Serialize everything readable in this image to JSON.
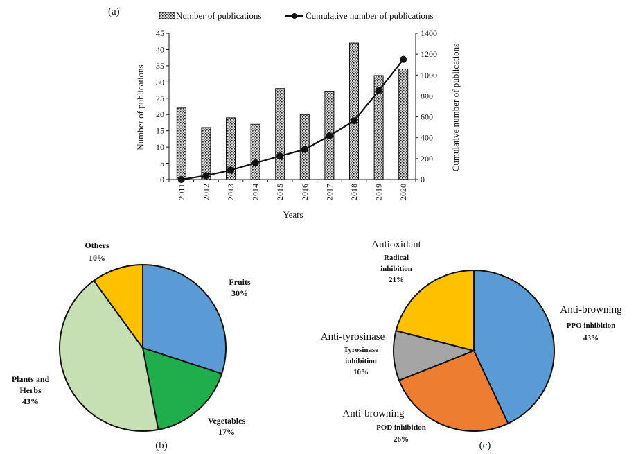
{
  "chart_data": [
    {
      "panel": "(a)",
      "type": "bar+line",
      "xlabel": "Years",
      "ylabel": "Number of publications",
      "y2label": "Cumulative number of publications",
      "ylim": [
        0,
        45
      ],
      "y2lim": [
        0,
        1400
      ],
      "yticks": [
        "0",
        "5",
        "10",
        "15",
        "20",
        "25",
        "30",
        "35",
        "40",
        "45"
      ],
      "y2ticks": [
        "0",
        "200",
        "400",
        "600",
        "800",
        "1000",
        "1200",
        "1400"
      ],
      "categories": [
        "2011",
        "2012",
        "2013",
        "2014",
        "2015",
        "2016",
        "2017",
        "2018",
        "2019",
        "2020"
      ],
      "series": [
        {
          "name": "Number of publications",
          "kind": "bar",
          "values": [
            22,
            16,
            19,
            17,
            28,
            20,
            27,
            42,
            32,
            34
          ]
        },
        {
          "name": "Cumulative number of publications",
          "kind": "line",
          "axis": "right",
          "values": [
            0,
            38,
            90,
            158,
            224,
            288,
            418,
            562,
            850,
            1150
          ]
        }
      ],
      "legend": "top"
    },
    {
      "panel": "(b)",
      "type": "pie",
      "slices": [
        {
          "label": "Fruits",
          "pct": "30%",
          "value": 30,
          "color": "#5b9bd5"
        },
        {
          "label": "Vegetables",
          "pct": "17%",
          "value": 17,
          "color": "#1fae4b"
        },
        {
          "label": "Plants and",
          "label2": "Herbs",
          "pct": "43%",
          "value": 43,
          "color": "#c6e0b4"
        },
        {
          "label": "Others",
          "pct": "10%",
          "value": 10,
          "color": "#ffc000"
        }
      ]
    },
    {
      "panel": "(c)",
      "type": "pie",
      "slices": [
        {
          "category": "Anti-browning",
          "label": "PPO inhibition",
          "pct": "43%",
          "value": 43,
          "color": "#5b9bd5"
        },
        {
          "category": "Anti-browning",
          "label": "POD inhibition",
          "pct": "26%",
          "value": 26,
          "color": "#ed7d31"
        },
        {
          "category": "Anti-tyrosinase",
          "label": "Tyrosinase",
          "label2": "inhibition",
          "pct": "10%",
          "value": 10,
          "color": "#a5a5a5"
        },
        {
          "category": "Antioxidant",
          "label": "Radical",
          "label2": "inhibition",
          "pct": "21%",
          "value": 21,
          "color": "#ffc000"
        }
      ]
    }
  ]
}
